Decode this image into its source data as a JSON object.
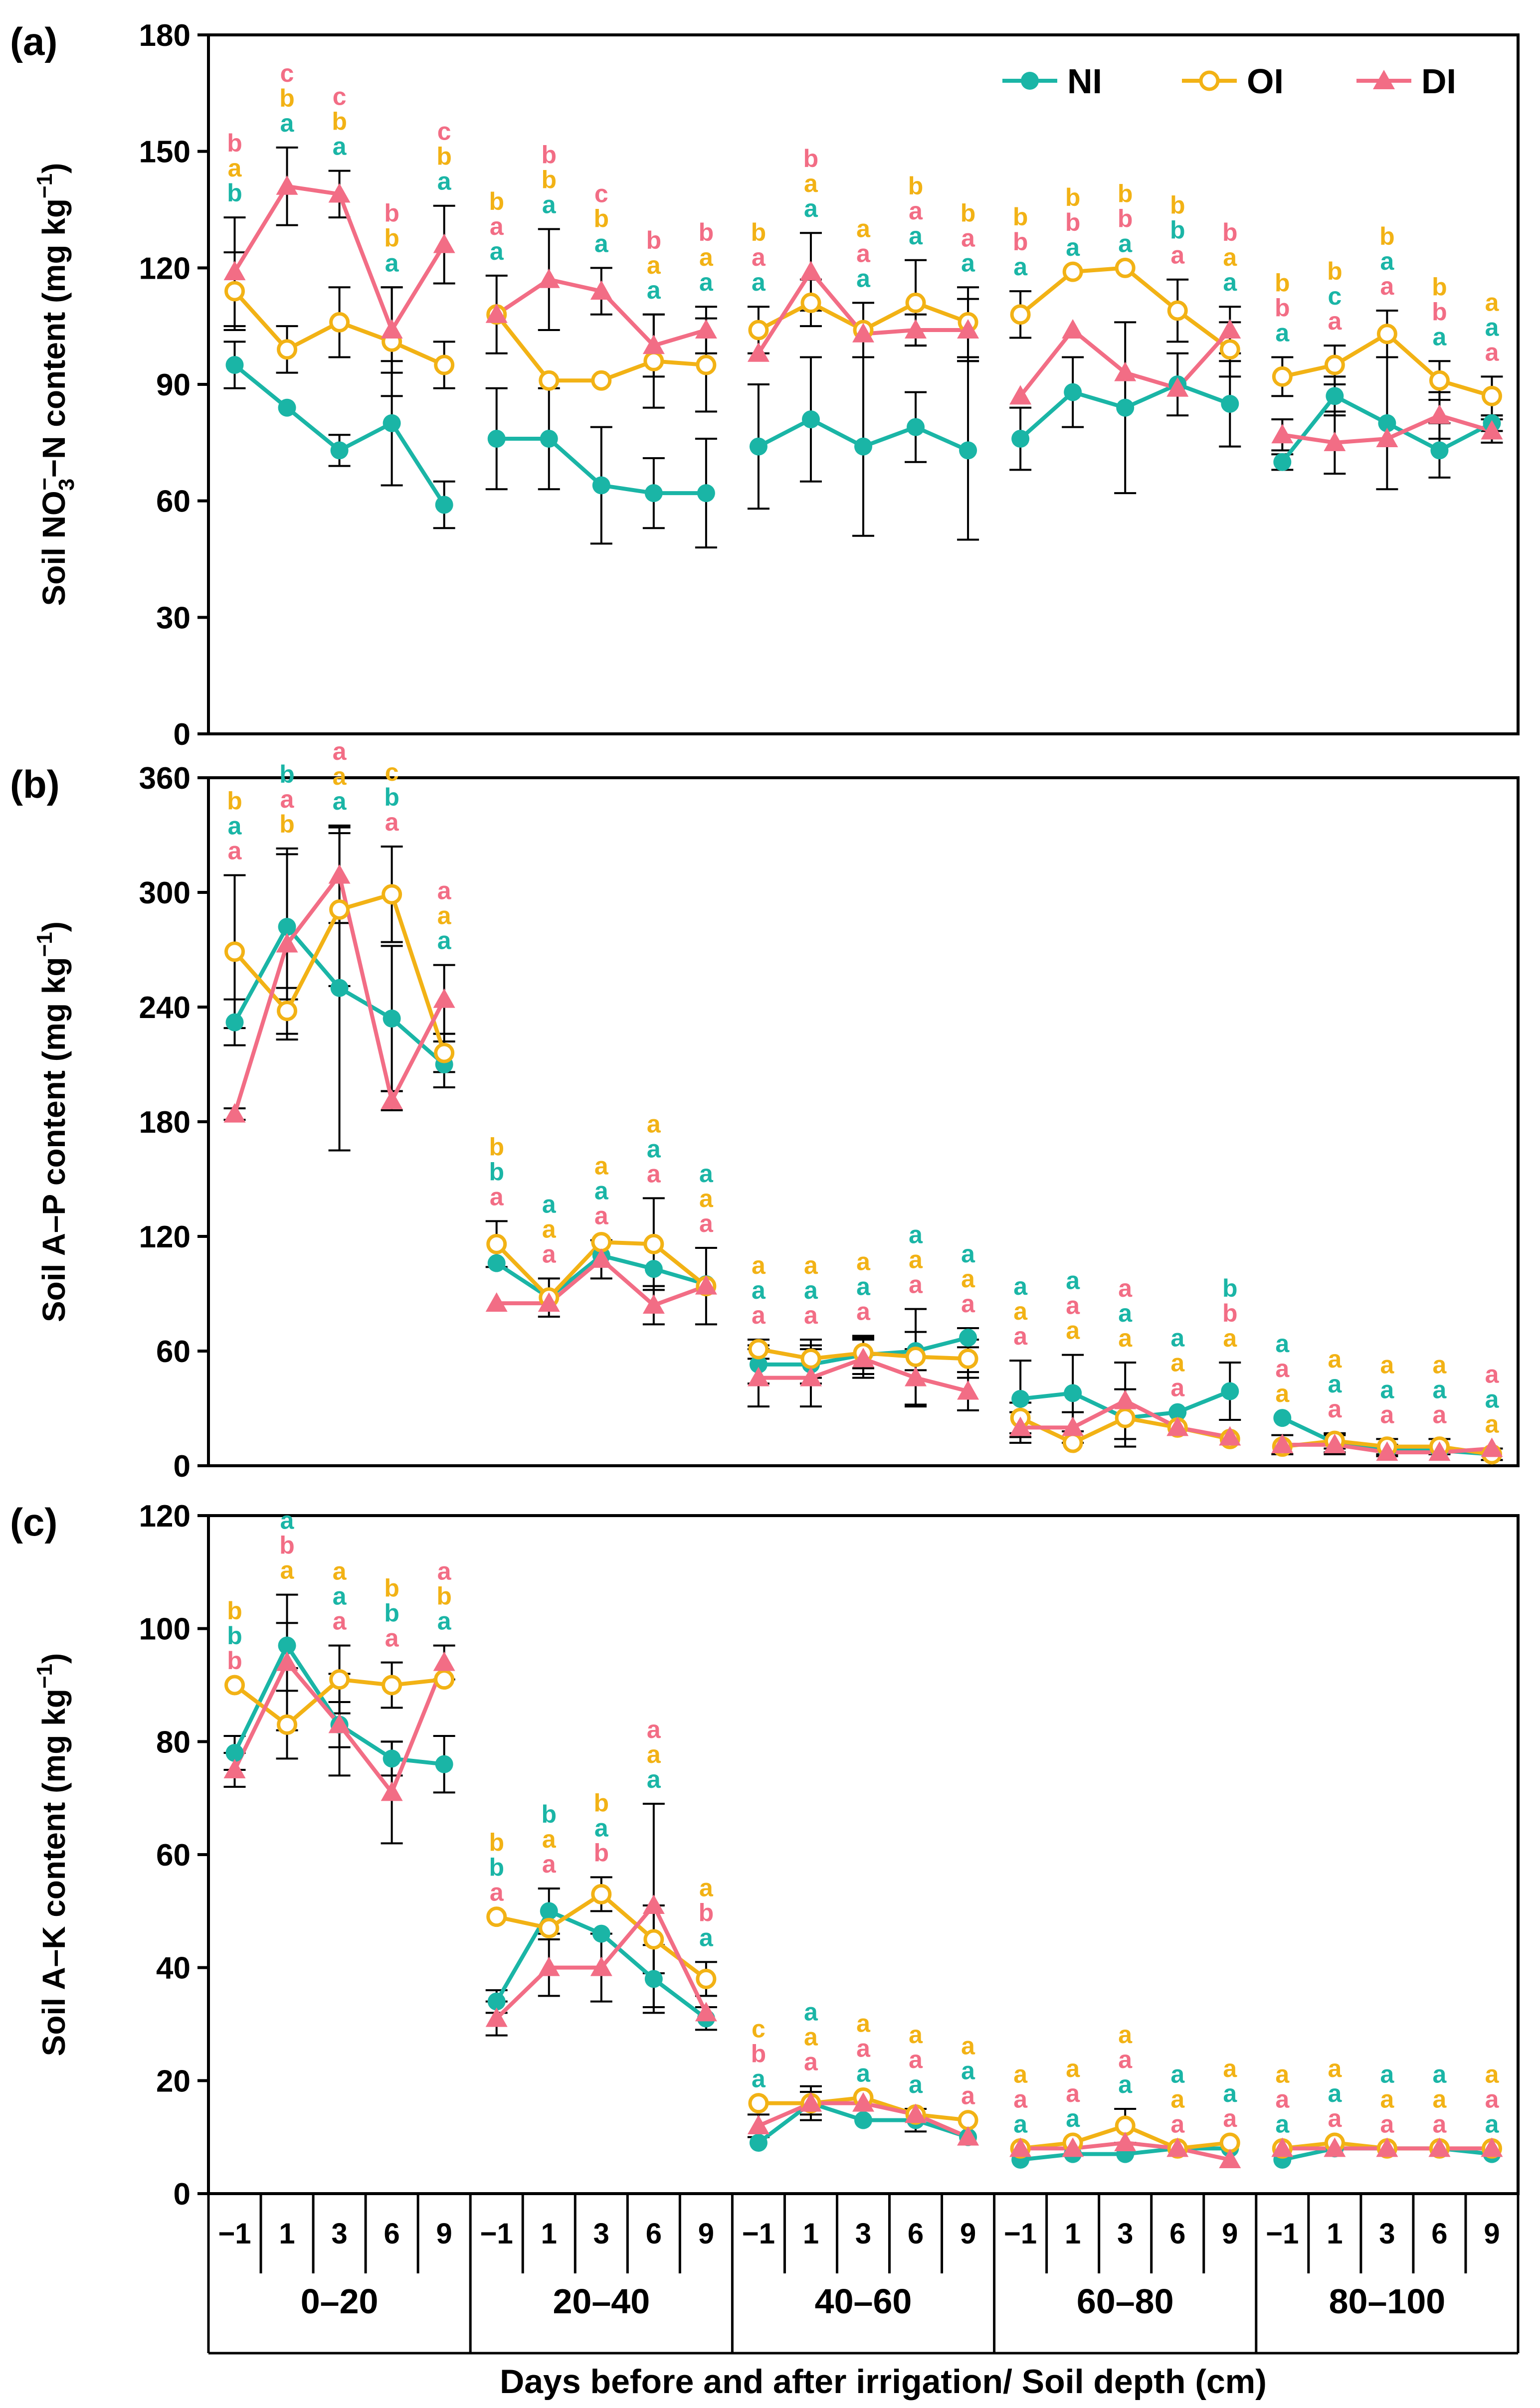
{
  "colors": {
    "NI": "#1ab5a6",
    "OI": "#f2b215",
    "DI": "#f26d85",
    "axis": "#000000"
  },
  "chart_data": {
    "type": "line",
    "xlabel": "Days before and after irrigation/ Soil depth (cm)",
    "days": [
      "−1",
      "1",
      "3",
      "6",
      "9"
    ],
    "depths": [
      "0–20",
      "20–40",
      "40–60",
      "60–80",
      "80–100"
    ],
    "legend": [
      "NI",
      "OI",
      "DI"
    ],
    "legend_position": "top-right",
    "panels": [
      {
        "label": "(a)",
        "ylabel_main": "Soil NO",
        "ylabel_sub": "3",
        "ylabel_sup": "−",
        "ylabel_rest": "−N content (mg kg",
        "ylabel_exp": "−1",
        "ylabel_end": ")",
        "ylim": [
          0,
          180
        ],
        "yticks": [
          "0",
          "30",
          "60",
          "90",
          "120",
          "150",
          "180"
        ],
        "series": [
          {
            "name": "NI",
            "values": [
              95,
              84,
              73,
              80,
              59,
              76,
              76,
              64,
              62,
              62,
              74,
              81,
              74,
              79,
              73,
              76,
              88,
              84,
              90,
              85,
              70,
              87,
              80,
              73,
              80
            ],
            "errors": [
              6,
              0,
              4,
              16,
              6,
              13,
              13,
              15,
              9,
              14,
              16,
              16,
              23,
              9,
              23,
              8,
              9,
              22,
              8,
              11,
              2,
              5,
              17,
              7,
              2
            ]
          },
          {
            "name": "OI",
            "values": [
              114,
              99,
              106,
              101,
              95,
              108,
              91,
              91,
              96,
              95,
              104,
              111,
              104,
              111,
              106,
              108,
              119,
              120,
              109,
              99,
              92,
              95,
              103,
              91,
              87
            ],
            "errors": [
              10,
              6,
              9,
              14,
              6,
              10,
              0,
              0,
              12,
              12,
              6,
              6,
              7,
              11,
              9,
              6,
              0,
              0,
              8,
              7,
              5,
              5,
              6,
              5,
              5
            ]
          },
          {
            "name": "DI",
            "values": [
              119,
              141,
              139,
              104,
              126,
              108,
              117,
              114,
              100,
              104,
              98,
              119,
              103,
              104,
              104,
              87,
              104,
              93,
              89,
              104,
              77,
              75,
              76,
              82,
              78
            ],
            "errors": [
              14,
              10,
              6,
              11,
              10,
              0,
              13,
              6,
              8,
              6,
              0,
              10,
              0,
              4,
              8,
              0,
              0,
              0,
              0,
              6,
              4,
              8,
              0,
              6,
              3
            ]
          }
        ],
        "sig": [
          [
            "bab",
            "cba",
            "cba",
            "bba",
            "cba"
          ],
          [
            "baa",
            "bba",
            "cba",
            "baa",
            "baa"
          ],
          [
            "baa",
            "baa",
            "aaa",
            "baa",
            "baa"
          ],
          [
            "bba",
            "bba",
            "bba",
            "bba",
            "baa"
          ],
          [
            "bba",
            "bca",
            "baa",
            "bba",
            "aaa"
          ]
        ]
      },
      {
        "label": "(b)",
        "ylabel_main": "Soil A–P content (mg kg",
        "ylabel_exp": "−1",
        "ylabel_end": ")",
        "ylim": [
          0,
          360
        ],
        "yticks": [
          "0",
          "60",
          "120",
          "180",
          "240",
          "300",
          "360"
        ],
        "series": [
          {
            "name": "NI",
            "values": [
              232,
              282,
              250,
              234,
              210,
              106,
              88,
              110,
              103,
              95,
              53,
              53,
              58,
              60,
              67,
              35,
              38,
              25,
              28,
              39,
              25,
              12,
              8,
              8,
              6
            ],
            "errors": [
              12,
              38,
              85,
              38,
              12,
              0,
              10,
              0,
              0,
              0,
              10,
              10,
              10,
              10,
              5,
              20,
              20,
              15,
              0,
              15,
              0,
              5,
              3,
              0,
              0
            ]
          },
          {
            "name": "OI",
            "values": [
              269,
              238,
              291,
              299,
              216,
              116,
              88,
              117,
              116,
              94,
              61,
              56,
              59,
              57,
              56,
              25,
              12,
              25,
              20,
              14,
              10,
              13,
              10,
              10,
              6
            ],
            "errors": [
              40,
              12,
              40,
              25,
              10,
              12,
              0,
              0,
              24,
              0,
              5,
              10,
              8,
              25,
              10,
              8,
              0,
              0,
              0,
              0,
              0,
              4,
              4,
              4,
              3
            ]
          },
          {
            "name": "DI",
            "values": [
              184,
              273,
              309,
              191,
              244,
              85,
              85,
              108,
              84,
              94,
              46,
              46,
              56,
              46,
              39,
              20,
              20,
              34,
              20,
              15,
              11,
              11,
              7,
              7,
              9
            ],
            "errors": [
              3,
              50,
              25,
              5,
              18,
              0,
              0,
              10,
              10,
              20,
              15,
              15,
              10,
              15,
              10,
              8,
              8,
              20,
              0,
              0,
              5,
              5,
              0,
              0,
              0
            ]
          }
        ],
        "sig": [
          [
            "baa",
            "bab",
            "aaa",
            "cba",
            "aaa"
          ],
          [
            "bba",
            "aaa",
            "aaa",
            "aaa",
            "aaa"
          ],
          [
            "aaa",
            "aaa",
            "aaa",
            "aaa",
            "aaa"
          ],
          [
            "aaa",
            "aaa",
            "aaa",
            "aaa",
            "bba"
          ],
          [
            "aaa",
            "aaa",
            "aaa",
            "aaa",
            "aaa"
          ]
        ]
      },
      {
        "label": "(c)",
        "ylabel_main": "Soil A–K content (mg kg",
        "ylabel_exp": "−1",
        "ylabel_end": ")",
        "ylim": [
          0,
          120
        ],
        "yticks": [
          "0",
          "20",
          "40",
          "60",
          "80",
          "100",
          "120"
        ],
        "series": [
          {
            "name": "NI",
            "values": [
              78,
              97,
              83,
              77,
              76,
              34,
              50,
              46,
              38,
              31,
              9,
              16,
              13,
              13,
              10,
              6,
              7,
              7,
              8,
              8,
              6,
              8,
              8,
              8,
              7
            ],
            "errors": [
              3,
              4,
              4,
              3,
              5,
              2,
              4,
              0,
              6,
              2,
              0,
              3,
              0,
              2,
              0,
              0,
              0,
              0,
              0,
              0,
              0,
              0,
              0,
              0,
              0
            ]
          },
          {
            "name": "OI",
            "values": [
              90,
              83,
              91,
              90,
              91,
              49,
              47,
              53,
              45,
              38,
              16,
              16,
              17,
              14,
              13,
              8,
              9,
              12,
              8,
              9,
              8,
              9,
              8,
              8,
              8
            ],
            "errors": [
              0,
              6,
              6,
              4,
              0,
              0,
              0,
              3,
              6,
              3,
              0,
              0,
              0,
              0,
              0,
              0,
              0,
              3,
              0,
              0,
              0,
              0,
              0,
              0,
              0
            ]
          },
          {
            "name": "DI",
            "values": [
              75,
              94,
              83,
              71,
              94,
              31,
              40,
              40,
              51,
              32,
              12,
              16,
              16,
              14,
              10,
              8,
              8,
              9,
              8,
              6,
              8,
              8,
              8,
              8,
              8
            ],
            "errors": [
              3,
              12,
              9,
              9,
              3,
              3,
              5,
              6,
              18,
              0,
              2,
              2,
              0,
              0,
              0,
              0,
              0,
              0,
              0,
              0,
              0,
              0,
              0,
              0,
              0
            ]
          }
        ],
        "sig": [
          [
            "bbb",
            "aba",
            "aaa",
            "bba",
            "aba"
          ],
          [
            "bba",
            "baa",
            "bab",
            "aaa",
            "aba"
          ],
          [
            "cba",
            "aaa",
            "aaa",
            "aaa",
            "aaa"
          ],
          [
            "aaa",
            "aaa",
            "aaa",
            "aaa",
            "aaa"
          ],
          [
            "aaa",
            "aaa",
            "aaa",
            "aaa",
            "aaa"
          ]
        ]
      }
    ]
  }
}
